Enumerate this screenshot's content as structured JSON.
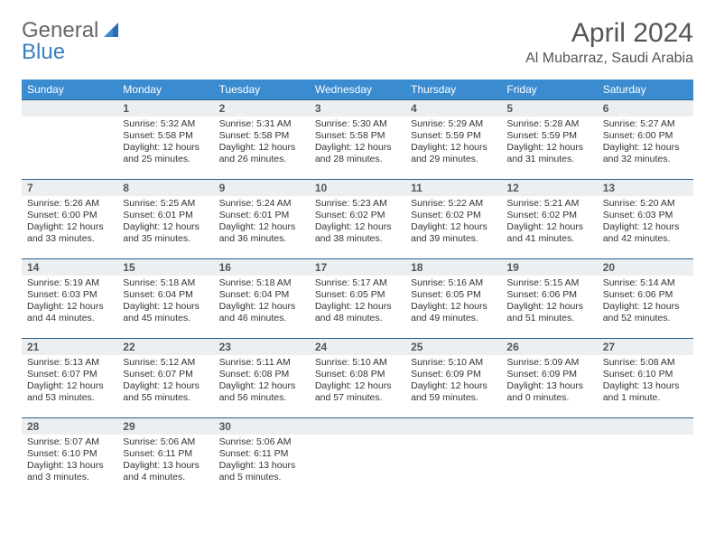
{
  "logo": {
    "text_general": "General",
    "text_blue": "Blue"
  },
  "header": {
    "month_title": "April 2024",
    "location": "Al Mubarraz, Saudi Arabia"
  },
  "colors": {
    "header_bg": "#3a8bcf",
    "header_text": "#ffffff",
    "daynum_bg": "#eceff1",
    "daynum_border": "#2e5c8a",
    "text": "#333333",
    "title": "#555555"
  },
  "weekdays": [
    "Sunday",
    "Monday",
    "Tuesday",
    "Wednesday",
    "Thursday",
    "Friday",
    "Saturday"
  ],
  "weeks": [
    [
      {
        "day": ""
      },
      {
        "day": "1",
        "sunrise": "Sunrise: 5:32 AM",
        "sunset": "Sunset: 5:58 PM",
        "daylight1": "Daylight: 12 hours",
        "daylight2": "and 25 minutes."
      },
      {
        "day": "2",
        "sunrise": "Sunrise: 5:31 AM",
        "sunset": "Sunset: 5:58 PM",
        "daylight1": "Daylight: 12 hours",
        "daylight2": "and 26 minutes."
      },
      {
        "day": "3",
        "sunrise": "Sunrise: 5:30 AM",
        "sunset": "Sunset: 5:58 PM",
        "daylight1": "Daylight: 12 hours",
        "daylight2": "and 28 minutes."
      },
      {
        "day": "4",
        "sunrise": "Sunrise: 5:29 AM",
        "sunset": "Sunset: 5:59 PM",
        "daylight1": "Daylight: 12 hours",
        "daylight2": "and 29 minutes."
      },
      {
        "day": "5",
        "sunrise": "Sunrise: 5:28 AM",
        "sunset": "Sunset: 5:59 PM",
        "daylight1": "Daylight: 12 hours",
        "daylight2": "and 31 minutes."
      },
      {
        "day": "6",
        "sunrise": "Sunrise: 5:27 AM",
        "sunset": "Sunset: 6:00 PM",
        "daylight1": "Daylight: 12 hours",
        "daylight2": "and 32 minutes."
      }
    ],
    [
      {
        "day": "7",
        "sunrise": "Sunrise: 5:26 AM",
        "sunset": "Sunset: 6:00 PM",
        "daylight1": "Daylight: 12 hours",
        "daylight2": "and 33 minutes."
      },
      {
        "day": "8",
        "sunrise": "Sunrise: 5:25 AM",
        "sunset": "Sunset: 6:01 PM",
        "daylight1": "Daylight: 12 hours",
        "daylight2": "and 35 minutes."
      },
      {
        "day": "9",
        "sunrise": "Sunrise: 5:24 AM",
        "sunset": "Sunset: 6:01 PM",
        "daylight1": "Daylight: 12 hours",
        "daylight2": "and 36 minutes."
      },
      {
        "day": "10",
        "sunrise": "Sunrise: 5:23 AM",
        "sunset": "Sunset: 6:02 PM",
        "daylight1": "Daylight: 12 hours",
        "daylight2": "and 38 minutes."
      },
      {
        "day": "11",
        "sunrise": "Sunrise: 5:22 AM",
        "sunset": "Sunset: 6:02 PM",
        "daylight1": "Daylight: 12 hours",
        "daylight2": "and 39 minutes."
      },
      {
        "day": "12",
        "sunrise": "Sunrise: 5:21 AM",
        "sunset": "Sunset: 6:02 PM",
        "daylight1": "Daylight: 12 hours",
        "daylight2": "and 41 minutes."
      },
      {
        "day": "13",
        "sunrise": "Sunrise: 5:20 AM",
        "sunset": "Sunset: 6:03 PM",
        "daylight1": "Daylight: 12 hours",
        "daylight2": "and 42 minutes."
      }
    ],
    [
      {
        "day": "14",
        "sunrise": "Sunrise: 5:19 AM",
        "sunset": "Sunset: 6:03 PM",
        "daylight1": "Daylight: 12 hours",
        "daylight2": "and 44 minutes."
      },
      {
        "day": "15",
        "sunrise": "Sunrise: 5:18 AM",
        "sunset": "Sunset: 6:04 PM",
        "daylight1": "Daylight: 12 hours",
        "daylight2": "and 45 minutes."
      },
      {
        "day": "16",
        "sunrise": "Sunrise: 5:18 AM",
        "sunset": "Sunset: 6:04 PM",
        "daylight1": "Daylight: 12 hours",
        "daylight2": "and 46 minutes."
      },
      {
        "day": "17",
        "sunrise": "Sunrise: 5:17 AM",
        "sunset": "Sunset: 6:05 PM",
        "daylight1": "Daylight: 12 hours",
        "daylight2": "and 48 minutes."
      },
      {
        "day": "18",
        "sunrise": "Sunrise: 5:16 AM",
        "sunset": "Sunset: 6:05 PM",
        "daylight1": "Daylight: 12 hours",
        "daylight2": "and 49 minutes."
      },
      {
        "day": "19",
        "sunrise": "Sunrise: 5:15 AM",
        "sunset": "Sunset: 6:06 PM",
        "daylight1": "Daylight: 12 hours",
        "daylight2": "and 51 minutes."
      },
      {
        "day": "20",
        "sunrise": "Sunrise: 5:14 AM",
        "sunset": "Sunset: 6:06 PM",
        "daylight1": "Daylight: 12 hours",
        "daylight2": "and 52 minutes."
      }
    ],
    [
      {
        "day": "21",
        "sunrise": "Sunrise: 5:13 AM",
        "sunset": "Sunset: 6:07 PM",
        "daylight1": "Daylight: 12 hours",
        "daylight2": "and 53 minutes."
      },
      {
        "day": "22",
        "sunrise": "Sunrise: 5:12 AM",
        "sunset": "Sunset: 6:07 PM",
        "daylight1": "Daylight: 12 hours",
        "daylight2": "and 55 minutes."
      },
      {
        "day": "23",
        "sunrise": "Sunrise: 5:11 AM",
        "sunset": "Sunset: 6:08 PM",
        "daylight1": "Daylight: 12 hours",
        "daylight2": "and 56 minutes."
      },
      {
        "day": "24",
        "sunrise": "Sunrise: 5:10 AM",
        "sunset": "Sunset: 6:08 PM",
        "daylight1": "Daylight: 12 hours",
        "daylight2": "and 57 minutes."
      },
      {
        "day": "25",
        "sunrise": "Sunrise: 5:10 AM",
        "sunset": "Sunset: 6:09 PM",
        "daylight1": "Daylight: 12 hours",
        "daylight2": "and 59 minutes."
      },
      {
        "day": "26",
        "sunrise": "Sunrise: 5:09 AM",
        "sunset": "Sunset: 6:09 PM",
        "daylight1": "Daylight: 13 hours",
        "daylight2": "and 0 minutes."
      },
      {
        "day": "27",
        "sunrise": "Sunrise: 5:08 AM",
        "sunset": "Sunset: 6:10 PM",
        "daylight1": "Daylight: 13 hours",
        "daylight2": "and 1 minute."
      }
    ],
    [
      {
        "day": "28",
        "sunrise": "Sunrise: 5:07 AM",
        "sunset": "Sunset: 6:10 PM",
        "daylight1": "Daylight: 13 hours",
        "daylight2": "and 3 minutes."
      },
      {
        "day": "29",
        "sunrise": "Sunrise: 5:06 AM",
        "sunset": "Sunset: 6:11 PM",
        "daylight1": "Daylight: 13 hours",
        "daylight2": "and 4 minutes."
      },
      {
        "day": "30",
        "sunrise": "Sunrise: 5:06 AM",
        "sunset": "Sunset: 6:11 PM",
        "daylight1": "Daylight: 13 hours",
        "daylight2": "and 5 minutes."
      },
      {
        "day": ""
      },
      {
        "day": ""
      },
      {
        "day": ""
      },
      {
        "day": ""
      }
    ]
  ]
}
